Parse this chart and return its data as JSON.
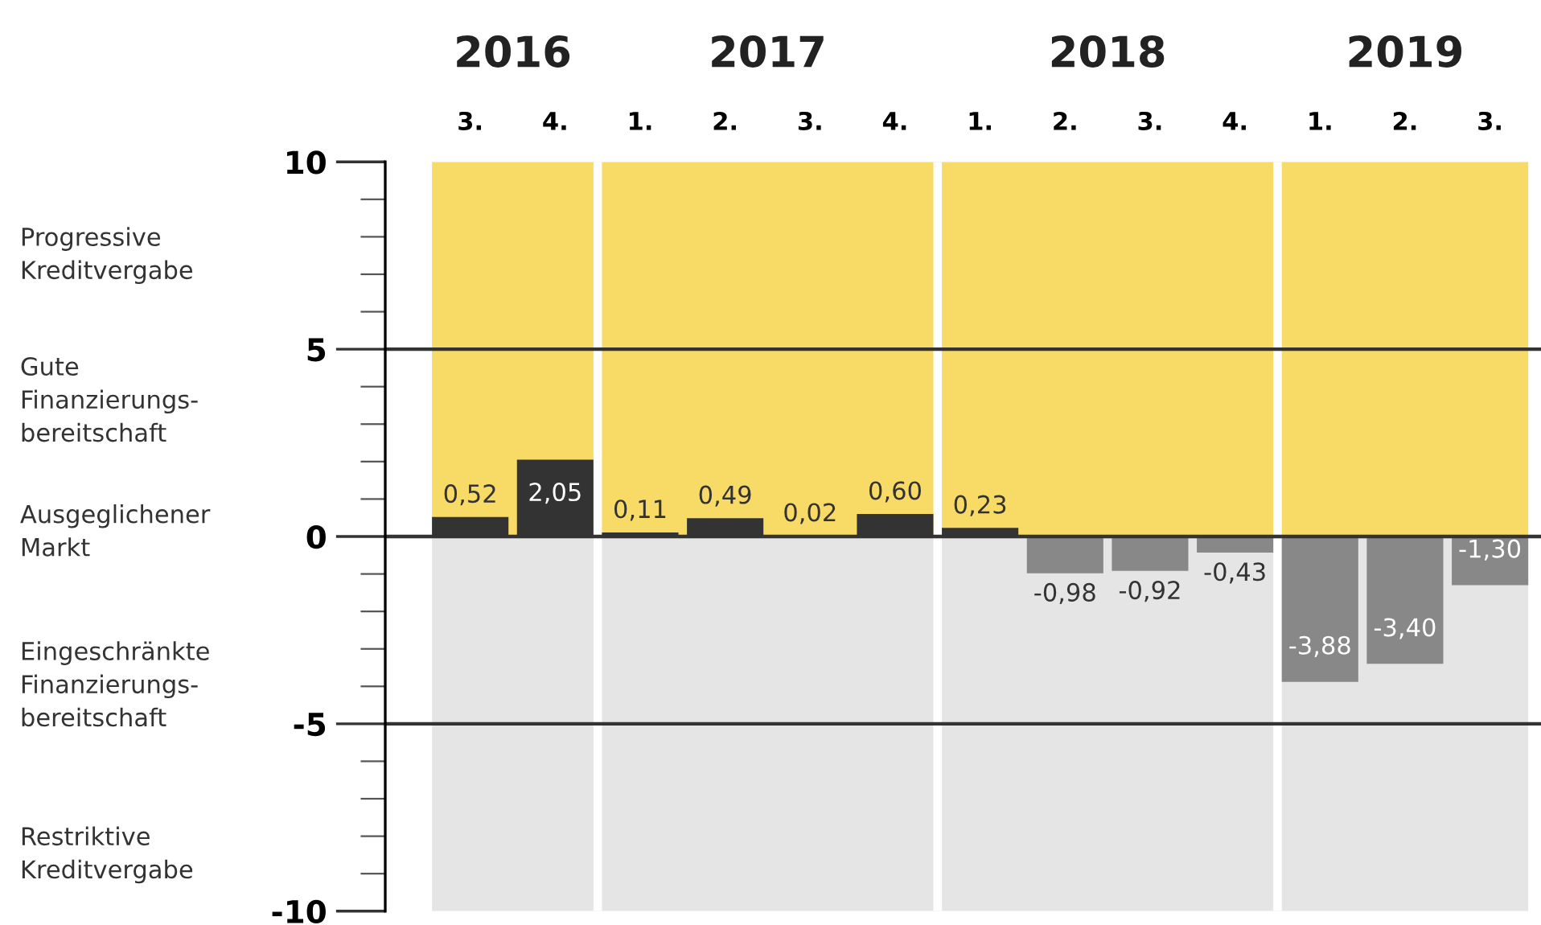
{
  "chart_data": {
    "type": "bar",
    "categories": [
      "3.",
      "4.",
      "1.",
      "2.",
      "3.",
      "4.",
      "1.",
      "2.",
      "3.",
      "4.",
      "1.",
      "2.",
      "3."
    ],
    "values": [
      0.52,
      2.05,
      0.11,
      0.49,
      0.02,
      0.6,
      0.23,
      -0.98,
      -0.92,
      -0.43,
      -3.88,
      -3.4,
      -1.3
    ],
    "value_labels": [
      "0,52",
      "2,05",
      "0,11",
      "0,49",
      "0,02",
      "0,60",
      "0,23",
      "-0,98",
      "-0,92",
      "-0,43",
      "-3,88",
      "-3,40",
      "-1,30"
    ],
    "colors": [
      "#333333",
      "#333333",
      "#333333",
      "#333333",
      "#333333",
      "#333333",
      "#333333",
      "#888888",
      "#888888",
      "#888888",
      "#888888",
      "#888888",
      "#888888"
    ],
    "ylim": [
      -10,
      10
    ],
    "yticks": [
      -10,
      -5,
      0,
      5,
      10
    ],
    "ref_lines": [
      {
        "axis": "y",
        "value": 5,
        "color": "#333333"
      },
      {
        "axis": "y",
        "value": 0,
        "color": "#333333"
      },
      {
        "axis": "y",
        "value": -5,
        "color": "#333333"
      }
    ],
    "annotations": [
      "2016",
      "2017",
      "2018",
      "2019",
      "Progressive\nKreditvergabe",
      "Gute\nFinanzierungs-\nbereitschaft",
      "Ausgeglichener\nMarkt",
      "Eingeschränkte\nFinanzierungs-\nbereitschaft",
      "Restriktive\nKreditvergabe"
    ],
    "grid": false
  }
}
